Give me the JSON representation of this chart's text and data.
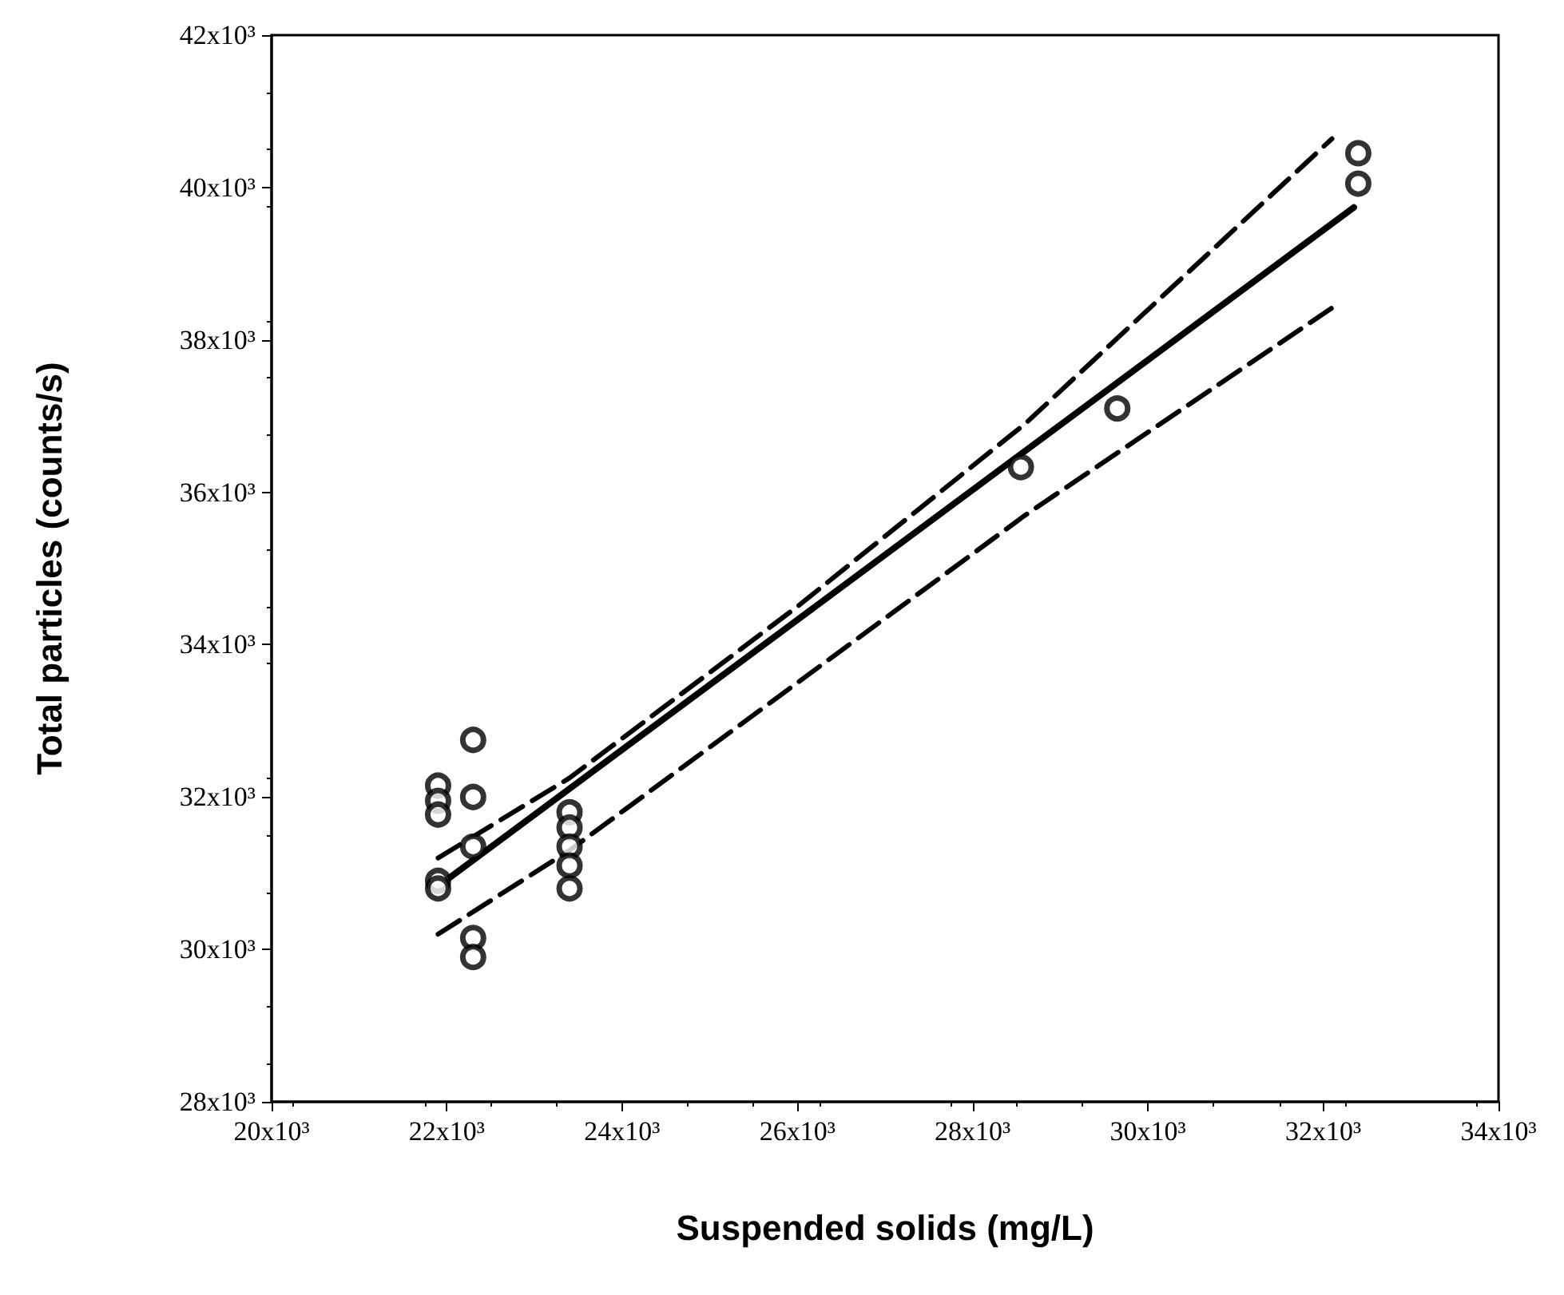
{
  "chart_data": {
    "type": "scatter",
    "xlabel": "Suspended solids (mg/L)",
    "ylabel": "Total particles (counts/s)",
    "xlim": [
      20000,
      34000
    ],
    "ylim": [
      28000,
      42000
    ],
    "xticks": [
      {
        "value": 20000,
        "label": "20x10³"
      },
      {
        "value": 22000,
        "label": "22x10³"
      },
      {
        "value": 24000,
        "label": "24x10³"
      },
      {
        "value": 26000,
        "label": "26x10³"
      },
      {
        "value": 28000,
        "label": "28x10³"
      },
      {
        "value": 30000,
        "label": "30x10³"
      },
      {
        "value": 32000,
        "label": "32x10³"
      },
      {
        "value": 34000,
        "label": "34x10³"
      }
    ],
    "yticks": [
      {
        "value": 28000,
        "label": "28x10³"
      },
      {
        "value": 30000,
        "label": "30x10³"
      },
      {
        "value": 32000,
        "label": "32x10³"
      },
      {
        "value": 34000,
        "label": "34x10³"
      },
      {
        "value": 36000,
        "label": "36x10³"
      },
      {
        "value": 38000,
        "label": "38x10³"
      },
      {
        "value": 40000,
        "label": "40x10³"
      },
      {
        "value": 42000,
        "label": "42x10³"
      }
    ],
    "grid": false,
    "series": [
      {
        "color": "#000000",
        "marker": "circle",
        "x": [
          21900,
          21900,
          21900,
          21900,
          21900,
          22300,
          22300,
          22300,
          22300,
          22300,
          23400,
          23400,
          23400,
          23400,
          23400,
          28550,
          29650,
          32400,
          32400
        ],
        "values": [
          32150,
          31950,
          31770,
          30900,
          30800,
          32750,
          32000,
          31350,
          30150,
          29900,
          31800,
          31600,
          31350,
          31100,
          30800,
          36330,
          37100,
          40450,
          40050
        ]
      },
      {
        "type": "line",
        "color": "#000000",
        "marker": "none",
        "line_style": "solid",
        "x": [
          21900,
          32350
        ],
        "values": [
          30830,
          39740
        ]
      },
      {
        "type": "line",
        "color": "#000000",
        "marker": "none",
        "line_style": "dashed",
        "x": [
          21900,
          23400,
          26000,
          28600,
          32100
        ],
        "values": [
          31200,
          32250,
          34500,
          36900,
          40640
        ]
      },
      {
        "type": "line",
        "color": "#000000",
        "marker": "none",
        "line_style": "dashed",
        "x": [
          21900,
          23400,
          26000,
          28600,
          32100
        ],
        "values": [
          30200,
          31300,
          33500,
          35700,
          38420
        ]
      }
    ]
  }
}
